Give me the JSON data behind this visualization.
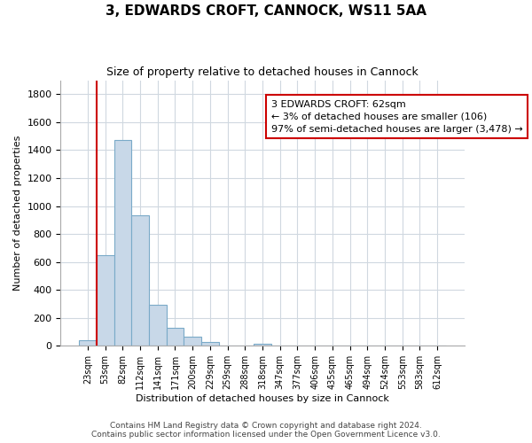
{
  "title": "3, EDWARDS CROFT, CANNOCK, WS11 5AA",
  "subtitle": "Size of property relative to detached houses in Cannock",
  "xlabel": "Distribution of detached houses by size in Cannock",
  "ylabel": "Number of detached properties",
  "bin_labels": [
    "23sqm",
    "53sqm",
    "82sqm",
    "112sqm",
    "141sqm",
    "171sqm",
    "200sqm",
    "229sqm",
    "259sqm",
    "288sqm",
    "318sqm",
    "347sqm",
    "377sqm",
    "406sqm",
    "435sqm",
    "465sqm",
    "494sqm",
    "524sqm",
    "553sqm",
    "583sqm",
    "612sqm"
  ],
  "bar_values": [
    40,
    650,
    1470,
    935,
    295,
    130,
    65,
    25,
    0,
    0,
    15,
    0,
    0,
    0,
    0,
    0,
    0,
    0,
    0,
    0,
    0
  ],
  "bar_color": "#c8d8e8",
  "bar_edge_color": "#7aaac8",
  "reference_line_x": 0.5,
  "reference_line_color": "#cc0000",
  "ylim": [
    0,
    1900
  ],
  "yticks": [
    0,
    200,
    400,
    600,
    800,
    1000,
    1200,
    1400,
    1600,
    1800
  ],
  "annotation_title": "3 EDWARDS CROFT: 62sqm",
  "annotation_line1": "← 3% of detached houses are smaller (106)",
  "annotation_line2": "97% of semi-detached houses are larger (3,478) →",
  "annotation_box_color": "#ffffff",
  "annotation_box_edge": "#cc0000",
  "footer_line1": "Contains HM Land Registry data © Crown copyright and database right 2024.",
  "footer_line2": "Contains public sector information licensed under the Open Government Licence v3.0.",
  "background_color": "#ffffff",
  "grid_color": "#d0d8e0",
  "title_fontsize": 11,
  "subtitle_fontsize": 9,
  "ylabel_fontsize": 8,
  "xlabel_fontsize": 8,
  "tick_fontsize": 8,
  "xtick_fontsize": 7,
  "footer_fontsize": 6.5,
  "annotation_fontsize": 8
}
